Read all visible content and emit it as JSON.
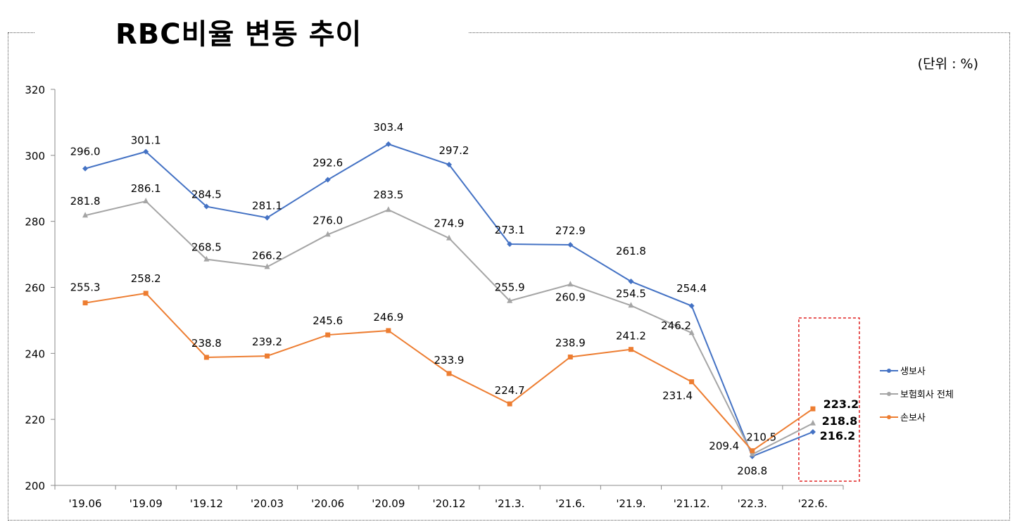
{
  "title": "RBC비율 변동 추이",
  "unit": "(단위 : %)",
  "chart_data": {
    "type": "line",
    "title": "RBC비율 변동 추이",
    "categories": [
      "'19.06",
      "'19.09",
      "'19.12",
      "'20.03",
      "'20.06",
      "'20.09",
      "'20.12",
      "'21.3.",
      "'21.6.",
      "'21.9.",
      "'21.12.",
      "'22.3.",
      "'22.6."
    ],
    "ylim": [
      200,
      320
    ],
    "yticks": [
      200,
      220,
      240,
      260,
      280,
      300,
      320
    ],
    "grid": false,
    "legend": "right",
    "series": [
      {
        "name": "생보사",
        "color": "#4472C4",
        "marker": "diamond",
        "values": [
          296.0,
          301.1,
          284.5,
          281.1,
          292.6,
          303.4,
          297.2,
          273.1,
          272.9,
          261.8,
          254.4,
          208.8,
          216.2
        ]
      },
      {
        "name": "보험회사 전체",
        "color": "#A5A5A5",
        "marker": "triangle",
        "values": [
          281.8,
          286.1,
          268.5,
          266.2,
          276.0,
          283.5,
          274.9,
          255.9,
          260.9,
          254.5,
          246.2,
          209.4,
          218.8
        ]
      },
      {
        "name": "손보사",
        "color": "#ED7D31",
        "marker": "square",
        "values": [
          255.3,
          258.2,
          238.8,
          239.2,
          245.6,
          246.9,
          233.9,
          224.7,
          238.9,
          241.2,
          231.4,
          210.5,
          223.2
        ]
      }
    ],
    "highlight": {
      "category": "'22.6.",
      "color": "#E02020"
    }
  }
}
